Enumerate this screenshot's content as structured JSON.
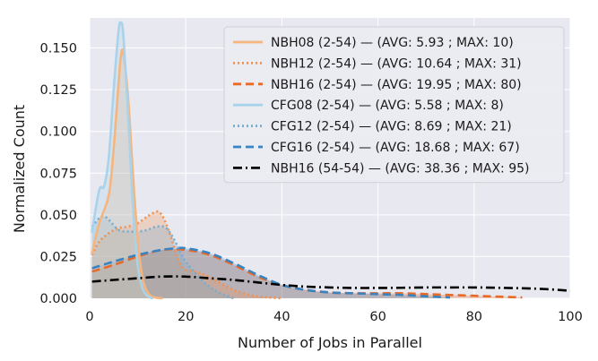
{
  "chart_data": {
    "type": "area",
    "xlabel": "Number of Jobs in Parallel",
    "ylabel": "Normalized Count",
    "xlim": [
      0,
      100
    ],
    "ylim": [
      0,
      0.168
    ],
    "xticks": [
      0,
      20,
      40,
      60,
      80,
      100
    ],
    "xtick_labels": [
      "0",
      "20",
      "40",
      "60",
      "80",
      "100"
    ],
    "yticks": [
      0.0,
      0.025,
      0.05,
      0.075,
      0.1,
      0.125,
      0.15
    ],
    "ytick_labels": [
      "0.000",
      "0.025",
      "0.050",
      "0.075",
      "0.100",
      "0.125",
      "0.150"
    ],
    "grid": true,
    "legend_position": "top-right",
    "background": "#e8e8f0",
    "series": [
      {
        "name": "NBH08 (2-54) — (AVG: 5.93 ; MAX: 10)",
        "color": "#f5b57e",
        "dash": "solid",
        "fill": true,
        "x": [
          0.5,
          2,
          4,
          5,
          6,
          6.5,
          7,
          8,
          9,
          10,
          11,
          12,
          13,
          15
        ],
        "y": [
          0.027,
          0.045,
          0.062,
          0.09,
          0.128,
          0.145,
          0.147,
          0.12,
          0.075,
          0.035,
          0.012,
          0.004,
          0.001,
          0.0
        ]
      },
      {
        "name": "NBH12 (2-54) — (AVG: 10.64 ; MAX: 31)",
        "color": "#f2914f",
        "dash": "dotted",
        "fill": true,
        "x": [
          0.5,
          2,
          4,
          6,
          8,
          10,
          12,
          14,
          15,
          16,
          17,
          18,
          19,
          20,
          22,
          24,
          26,
          28,
          30,
          32,
          34,
          36,
          38,
          40
        ],
        "y": [
          0.026,
          0.034,
          0.039,
          0.042,
          0.043,
          0.045,
          0.049,
          0.052,
          0.05,
          0.044,
          0.036,
          0.027,
          0.02,
          0.017,
          0.016,
          0.014,
          0.011,
          0.008,
          0.005,
          0.003,
          0.0015,
          0.0008,
          0.0004,
          0.0
        ]
      },
      {
        "name": "NBH16 (2-54) — (AVG: 19.95 ; MAX: 80)",
        "color": "#e86a28",
        "dash": "dashed",
        "fill": true,
        "x": [
          0.5,
          5,
          10,
          15,
          20,
          25,
          30,
          35,
          40,
          45,
          50,
          55,
          60,
          65,
          70,
          75,
          80,
          85,
          90
        ],
        "y": [
          0.016,
          0.02,
          0.025,
          0.029,
          0.029,
          0.026,
          0.02,
          0.013,
          0.008,
          0.005,
          0.0035,
          0.003,
          0.003,
          0.003,
          0.0025,
          0.002,
          0.0015,
          0.001,
          0.0005
        ]
      },
      {
        "name": "CFG08 (2-54) — (AVG: 5.58 ; MAX: 8)",
        "color": "#a9d3ea",
        "dash": "solid",
        "fill": true,
        "x": [
          0.5,
          2,
          3,
          4,
          5,
          6,
          6.5,
          7,
          8,
          9,
          10,
          11,
          12,
          13
        ],
        "y": [
          0.04,
          0.065,
          0.067,
          0.085,
          0.125,
          0.16,
          0.165,
          0.158,
          0.11,
          0.055,
          0.02,
          0.006,
          0.0015,
          0.0
        ]
      },
      {
        "name": "CFG12 (2-54) — (AVG: 8.69 ; MAX: 21)",
        "color": "#74add1",
        "dash": "dotted",
        "fill": true,
        "x": [
          0.5,
          2,
          3,
          4,
          6,
          8,
          10,
          12,
          14,
          16,
          18,
          19,
          20,
          22,
          24,
          26,
          28,
          30
        ],
        "y": [
          0.043,
          0.048,
          0.049,
          0.047,
          0.041,
          0.04,
          0.04,
          0.041,
          0.043,
          0.042,
          0.033,
          0.027,
          0.022,
          0.015,
          0.009,
          0.005,
          0.002,
          0.0
        ]
      },
      {
        "name": "CFG16 (2-54) — (AVG: 18.68 ; MAX: 67)",
        "color": "#3a83c1",
        "dash": "dashed",
        "fill": true,
        "x": [
          0.5,
          5,
          10,
          15,
          18,
          20,
          25,
          30,
          35,
          40,
          45,
          50,
          55,
          60,
          65,
          70,
          75
        ],
        "y": [
          0.018,
          0.022,
          0.026,
          0.029,
          0.03,
          0.03,
          0.027,
          0.021,
          0.014,
          0.008,
          0.005,
          0.0035,
          0.003,
          0.0025,
          0.002,
          0.0012,
          0.0005
        ]
      },
      {
        "name": "NBH16 (54-54) — (AVG: 38.36 ; MAX: 95)",
        "color": "#000000",
        "dash": "dashdot",
        "fill": false,
        "x": [
          0.5,
          5,
          10,
          15,
          20,
          25,
          30,
          35,
          40,
          45,
          50,
          55,
          60,
          65,
          70,
          75,
          80,
          85,
          90,
          95,
          100
        ],
        "y": [
          0.01,
          0.011,
          0.012,
          0.013,
          0.013,
          0.012,
          0.011,
          0.0095,
          0.008,
          0.007,
          0.0065,
          0.0062,
          0.0062,
          0.0063,
          0.0065,
          0.0065,
          0.0065,
          0.0063,
          0.006,
          0.0055,
          0.0045
        ]
      }
    ]
  }
}
